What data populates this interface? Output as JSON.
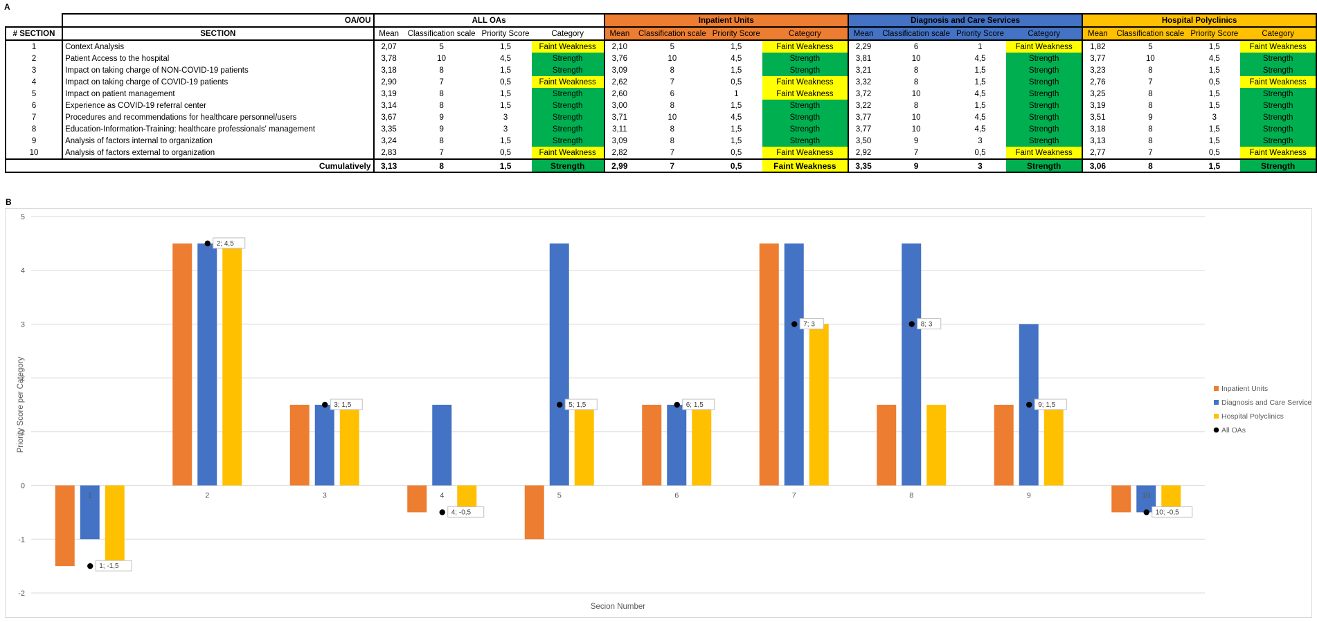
{
  "panel_a_label": "A",
  "panel_b_label": "B",
  "table": {
    "top_left_header": "OA/OU",
    "groups": [
      "ALL OAs",
      "Inpatient Units",
      "Diagnosis and Care Services",
      "Hospital Polyclinics"
    ],
    "group_colors": [
      "#ffffff",
      "#ed7d31",
      "#4472c4",
      "#ffc000"
    ],
    "col_section_num": "# SECTION",
    "col_section": "SECTION",
    "subcols": [
      "Mean",
      "Classification scale",
      "Priority Score",
      "Category"
    ],
    "category_colors": {
      "Faint Weakness": "#ffff00",
      "Strength": "#00b050"
    },
    "rows": [
      {
        "num": "1",
        "section": "Context Analysis",
        "groups": [
          [
            "2,07",
            "5",
            "1,5",
            "Faint Weakness"
          ],
          [
            "2,10",
            "5",
            "1,5",
            "Faint Weakness"
          ],
          [
            "2,29",
            "6",
            "1",
            "Faint Weakness"
          ],
          [
            "1,82",
            "5",
            "1,5",
            "Faint Weakness"
          ]
        ]
      },
      {
        "num": "2",
        "section": "Patient Access to the hospital",
        "groups": [
          [
            "3,78",
            "10",
            "4,5",
            "Strength"
          ],
          [
            "3,76",
            "10",
            "4,5",
            "Strength"
          ],
          [
            "3,81",
            "10",
            "4,5",
            "Strength"
          ],
          [
            "3,77",
            "10",
            "4,5",
            "Strength"
          ]
        ]
      },
      {
        "num": "3",
        "section": "Impact on taking charge of NON-COVID-19 patients",
        "groups": [
          [
            "3,18",
            "8",
            "1,5",
            "Strength"
          ],
          [
            "3,09",
            "8",
            "1,5",
            "Strength"
          ],
          [
            "3,21",
            "8",
            "1,5",
            "Strength"
          ],
          [
            "3,23",
            "8",
            "1,5",
            "Strength"
          ]
        ]
      },
      {
        "num": "4",
        "section": "Impact on taking charge of COVID-19 patients",
        "groups": [
          [
            "2,90",
            "7",
            "0,5",
            "Faint Weakness"
          ],
          [
            "2,62",
            "7",
            "0,5",
            "Faint Weakness"
          ],
          [
            "3,32",
            "8",
            "1,5",
            "Strength"
          ],
          [
            "2,76",
            "7",
            "0,5",
            "Faint Weakness"
          ]
        ]
      },
      {
        "num": "5",
        "section": "Impact on patient management",
        "groups": [
          [
            "3,19",
            "8",
            "1,5",
            "Strength"
          ],
          [
            "2,60",
            "6",
            "1",
            "Faint Weakness"
          ],
          [
            "3,72",
            "10",
            "4,5",
            "Strength"
          ],
          [
            "3,25",
            "8",
            "1,5",
            "Strength"
          ]
        ]
      },
      {
        "num": "6",
        "section": "Experience as COVID-19 referral center",
        "groups": [
          [
            "3,14",
            "8",
            "1,5",
            "Strength"
          ],
          [
            "3,00",
            "8",
            "1,5",
            "Strength"
          ],
          [
            "3,22",
            "8",
            "1,5",
            "Strength"
          ],
          [
            "3,19",
            "8",
            "1,5",
            "Strength"
          ]
        ]
      },
      {
        "num": "7",
        "section": "Procedures and recommendations for healthcare personnel/users",
        "groups": [
          [
            "3,67",
            "9",
            "3",
            "Strength"
          ],
          [
            "3,71",
            "10",
            "4,5",
            "Strength"
          ],
          [
            "3,77",
            "10",
            "4,5",
            "Strength"
          ],
          [
            "3,51",
            "9",
            "3",
            "Strength"
          ]
        ]
      },
      {
        "num": "8",
        "section": "Education-Information-Training: healthcare professionals' management",
        "groups": [
          [
            "3,35",
            "9",
            "3",
            "Strength"
          ],
          [
            "3,11",
            "8",
            "1,5",
            "Strength"
          ],
          [
            "3,77",
            "10",
            "4,5",
            "Strength"
          ],
          [
            "3,18",
            "8",
            "1,5",
            "Strength"
          ]
        ]
      },
      {
        "num": "9",
        "section": "Analysis of factors internal to organization",
        "groups": [
          [
            "3,24",
            "8",
            "1,5",
            "Strength"
          ],
          [
            "3,09",
            "8",
            "1,5",
            "Strength"
          ],
          [
            "3,50",
            "9",
            "3",
            "Strength"
          ],
          [
            "3,13",
            "8",
            "1,5",
            "Strength"
          ]
        ]
      },
      {
        "num": "10",
        "section": "Analysis of factors external to organization",
        "groups": [
          [
            "2,83",
            "7",
            "0,5",
            "Faint Weakness"
          ],
          [
            "2,82",
            "7",
            "0,5",
            "Faint Weakness"
          ],
          [
            "2,92",
            "7",
            "0,5",
            "Faint Weakness"
          ],
          [
            "2,77",
            "7",
            "0,5",
            "Faint Weakness"
          ]
        ]
      }
    ],
    "cumulative_label": "Cumulatively",
    "cumulative": [
      [
        "3,13",
        "8",
        "1,5",
        "Strength"
      ],
      [
        "2,99",
        "7",
        "0,5",
        "Faint Weakness"
      ],
      [
        "3,35",
        "9",
        "3",
        "Strength"
      ],
      [
        "3,06",
        "8",
        "1,5",
        "Strength"
      ]
    ]
  },
  "chart_data": {
    "type": "bar",
    "categories": [
      "1",
      "2",
      "3",
      "4",
      "5",
      "6",
      "7",
      "8",
      "9",
      "10"
    ],
    "series": [
      {
        "name": "Inpatient Units",
        "color": "#ed7d31",
        "values": [
          -1.5,
          4.5,
          1.5,
          -0.5,
          -1,
          1.5,
          4.5,
          1.5,
          1.5,
          -0.5
        ]
      },
      {
        "name": "Diagnosis and Care Services",
        "color": "#4472c4",
        "values": [
          -1,
          4.5,
          1.5,
          1.5,
          4.5,
          1.5,
          4.5,
          4.5,
          3,
          -0.5
        ]
      },
      {
        "name": "Hospital Polyclinics",
        "color": "#ffc000",
        "values": [
          -1.5,
          4.5,
          1.5,
          -0.5,
          1.5,
          1.5,
          3,
          1.5,
          1.5,
          -0.5
        ]
      }
    ],
    "scatter_series": {
      "name": "All OAs",
      "color": "#000000",
      "values": [
        -1.5,
        4.5,
        1.5,
        -0.5,
        1.5,
        1.5,
        3,
        3,
        1.5,
        -0.5
      ]
    },
    "data_labels": [
      "1; -1,5",
      "2; 4,5",
      "3; 1,5",
      "4; -0,5",
      "5; 1,5",
      "6; 1,5",
      "7; 3",
      "8; 3",
      "9; 1,5",
      "10; -0,5"
    ],
    "y_ticks": [
      "-2",
      "-1",
      "0",
      "1",
      "2",
      "3",
      "4",
      "5"
    ],
    "ylim": [
      -2,
      5
    ],
    "xlabel": "Secion Number",
    "ylabel": "Priority Score per Category",
    "legend_position": "right",
    "grid": true
  }
}
